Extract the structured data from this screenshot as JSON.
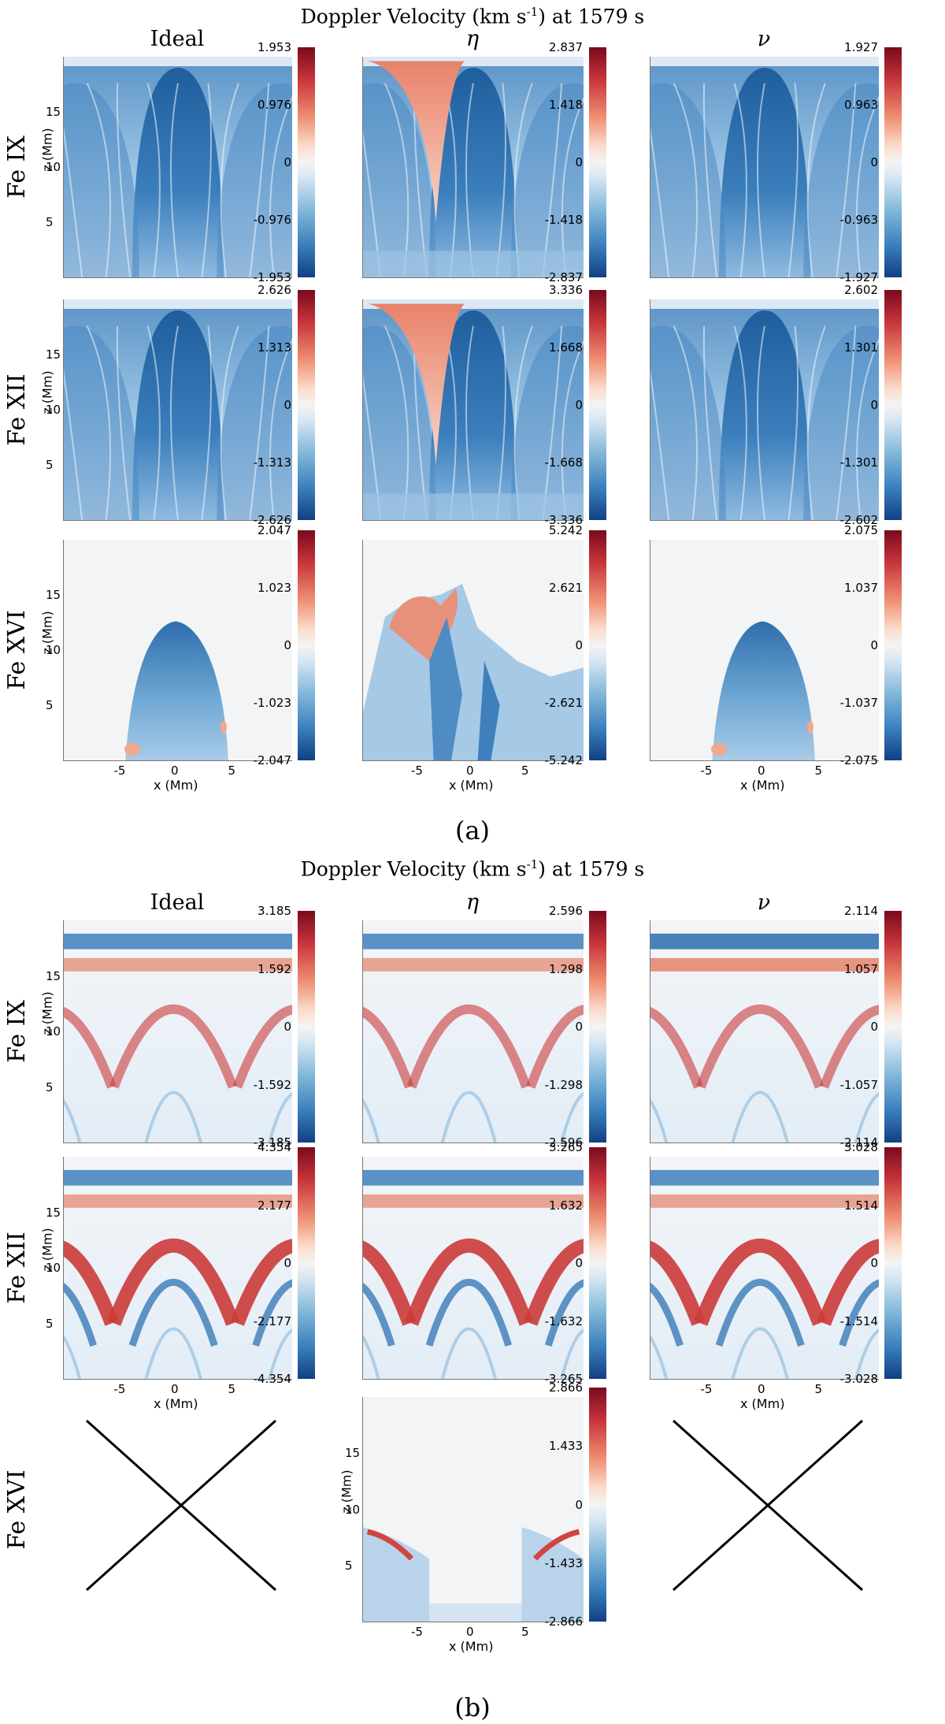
{
  "chart_data": [
    {
      "type": "heatmap",
      "part": "(a)",
      "title_main": "Doppler Velocity (km s",
      "title_sup": "-1",
      "title_tail": ") at 1579 s",
      "columns": [
        "Ideal",
        "η",
        "ν"
      ],
      "rows": [
        {
          "line": "Fe IX",
          "panels": [
            {
              "model": "Ideal",
              "vmax": "1.953",
              "vhalf": "0.976",
              "vmin": "-1.953",
              "vnhalf": "-0.976",
              "zero": "0",
              "pattern": "blue-dome"
            },
            {
              "model": "η",
              "vmax": "2.837",
              "vhalf": "1.418",
              "vmin": "-2.837",
              "vnhalf": "-1.418",
              "zero": "0",
              "pattern": "blue-dome-redflank"
            },
            {
              "model": "ν",
              "vmax": "1.927",
              "vhalf": "0.963",
              "vmin": "-1.927",
              "vnhalf": "-0.963",
              "zero": "0",
              "pattern": "blue-dome"
            }
          ]
        },
        {
          "line": "Fe XII",
          "panels": [
            {
              "model": "Ideal",
              "vmax": "2.626",
              "vhalf": "1.313",
              "vmin": "-2.626",
              "vnhalf": "-1.313",
              "zero": "0",
              "pattern": "blue-dome"
            },
            {
              "model": "η",
              "vmax": "3.336",
              "vhalf": "1.668",
              "vmin": "-3.336",
              "vnhalf": "-1.668",
              "zero": "0",
              "pattern": "blue-dome-redflank"
            },
            {
              "model": "ν",
              "vmax": "2.602",
              "vhalf": "1.301",
              "vmin": "-2.602",
              "vnhalf": "-1.301",
              "zero": "0",
              "pattern": "blue-dome"
            }
          ]
        },
        {
          "line": "Fe XVI",
          "panels": [
            {
              "model": "Ideal",
              "vmax": "2.047",
              "vhalf": "1.023",
              "vmin": "-2.047",
              "vnhalf": "-1.023",
              "zero": "0",
              "pattern": "cone"
            },
            {
              "model": "η",
              "vmax": "5.242",
              "vhalf": "2.621",
              "vmin": "-5.242",
              "vnhalf": "-2.621",
              "zero": "0",
              "pattern": "irregular"
            },
            {
              "model": "ν",
              "vmax": "2.075",
              "vhalf": "1.037",
              "vmin": "-2.075",
              "vnhalf": "-1.037",
              "zero": "0",
              "pattern": "cone"
            }
          ]
        }
      ],
      "xlabel": "x (Mm)",
      "ylabel": "z (Mm)",
      "xticks": [
        "-5",
        "0",
        "5"
      ],
      "yticks": [
        "5",
        "10",
        "15"
      ],
      "xlim": [
        -10,
        10
      ],
      "ylim": [
        0,
        20
      ],
      "caption": "(a)"
    },
    {
      "type": "heatmap",
      "part": "(b)",
      "title_main": "Doppler Velocity (km s",
      "title_sup": "-1",
      "title_tail": ") at 1579 s",
      "columns": [
        "Ideal",
        "η",
        "ν"
      ],
      "rows": [
        {
          "line": "Fe IX",
          "panels": [
            {
              "model": "Ideal",
              "vmax": "3.185",
              "vhalf": "1.592",
              "vmin": "-3.185",
              "vnhalf": "-1.592",
              "zero": "0",
              "pattern": "arcs"
            },
            {
              "model": "η",
              "vmax": "2.596",
              "vhalf": "1.298",
              "vmin": "-2.596",
              "vnhalf": "-1.298",
              "zero": "0",
              "pattern": "arcs"
            },
            {
              "model": "ν",
              "vmax": "2.114",
              "vhalf": "1.057",
              "vmin": "-2.114",
              "vnhalf": "-1.057",
              "zero": "0",
              "pattern": "arcs-soft"
            }
          ]
        },
        {
          "line": "Fe XII",
          "panels": [
            {
              "model": "Ideal",
              "vmax": "4.354",
              "vhalf": "2.177",
              "vmin": "-4.354",
              "vnhalf": "-2.177",
              "zero": "0",
              "pattern": "arcs-strong"
            },
            {
              "model": "η",
              "vmax": "3.265",
              "vhalf": "1.632",
              "vmin": "-3.265",
              "vnhalf": "-1.632",
              "zero": "0",
              "pattern": "arcs-strong"
            },
            {
              "model": "ν",
              "vmax": "3.028",
              "vhalf": "1.514",
              "vmin": "-3.028",
              "vnhalf": "-1.514",
              "zero": "0",
              "pattern": "arcs-strong"
            }
          ]
        },
        {
          "line": "Fe XVI",
          "panels": [
            {
              "model": "Ideal",
              "pattern": "none"
            },
            {
              "model": "η",
              "vmax": "2.866",
              "vhalf": "1.433",
              "vmin": "-2.866",
              "vnhalf": "-1.433",
              "zero": "0",
              "pattern": "footpoints"
            },
            {
              "model": "ν",
              "pattern": "none"
            }
          ]
        }
      ],
      "xlabel": "x (Mm)",
      "ylabel": "z (Mm)",
      "xticks": [
        "-5",
        "0",
        "5"
      ],
      "yticks": [
        "5",
        "10",
        "15"
      ],
      "xlim": [
        -10,
        10
      ],
      "ylim": [
        0,
        20
      ],
      "caption": "(b)"
    }
  ]
}
